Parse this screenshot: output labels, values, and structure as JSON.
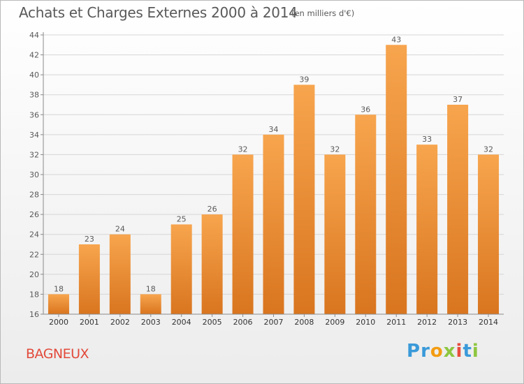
{
  "header": {
    "title": "Achats et Charges Externes 2000 à 2014",
    "subtitle": "(en milliers d'€)"
  },
  "footer": {
    "commune": "BAGNEUX",
    "logo_letters": [
      {
        "ch": "P",
        "color": "#3a9ad9"
      },
      {
        "ch": "r",
        "color": "#3a9ad9"
      },
      {
        "ch": "o",
        "color": "#f39c12"
      },
      {
        "ch": "x",
        "color": "#8dc63f"
      },
      {
        "ch": "i",
        "color": "#e84c3d"
      },
      {
        "ch": "t",
        "color": "#3a9ad9"
      },
      {
        "ch": "i",
        "color": "#8dc63f"
      }
    ]
  },
  "colors": {
    "bar_top": "#f7a54e",
    "bar_bottom": "#d9751f",
    "grid": "#d6d6d6",
    "axis": "#8a8a8a",
    "text": "#595959"
  },
  "chart_data": {
    "type": "bar",
    "categories": [
      "2000",
      "2001",
      "2002",
      "2003",
      "2004",
      "2005",
      "2006",
      "2007",
      "2008",
      "2009",
      "2010",
      "2011",
      "2012",
      "2013",
      "2014"
    ],
    "values": [
      18,
      23,
      24,
      18,
      25,
      26,
      32,
      34,
      39,
      32,
      36,
      43,
      33,
      37,
      32
    ],
    "ylim": [
      16,
      44
    ],
    "yticks": [
      16,
      18,
      20,
      22,
      24,
      26,
      28,
      30,
      32,
      34,
      36,
      38,
      40,
      42,
      44
    ],
    "grid": true,
    "data_labels": true
  }
}
